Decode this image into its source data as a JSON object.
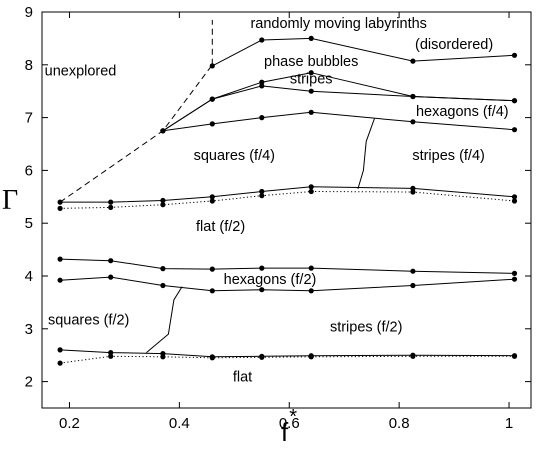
{
  "chart_data": {
    "type": "line",
    "xlabel": "f*",
    "xlabel_base": "f",
    "xlabel_sup": "*",
    "ylabel": "Γ",
    "xlim": [
      0.15,
      1.04
    ],
    "ylim": [
      1.5,
      9.0
    ],
    "grid": false,
    "legend": "none",
    "x_ticks": [
      0.2,
      0.4,
      0.6,
      0.8,
      1.0
    ],
    "x_tick_labels": [
      "0.2",
      "0.4",
      "0.6",
      "0.8",
      "1"
    ],
    "y_ticks": [
      2,
      3,
      4,
      5,
      6,
      7,
      8,
      9
    ],
    "y_tick_labels": [
      "2",
      "3",
      "4",
      "5",
      "6",
      "7",
      "8",
      "9"
    ],
    "series": [
      {
        "style": "dashed",
        "markers": false,
        "x": [
          0.183,
          0.37,
          0.46
        ],
        "y": [
          5.4,
          6.75,
          8.0
        ]
      },
      {
        "style": "dashed",
        "markers": false,
        "x": [
          0.46,
          0.46
        ],
        "y": [
          8.0,
          8.85
        ]
      },
      {
        "style": "solid",
        "markers": true,
        "x": [
          0.46,
          0.55,
          0.64,
          0.825,
          1.01
        ],
        "y": [
          7.98,
          8.47,
          8.5,
          8.07,
          8.18
        ]
      },
      {
        "style": "solid",
        "markers": true,
        "x": [
          0.37,
          0.46,
          0.55,
          0.64,
          0.825,
          1.01
        ],
        "y": [
          6.75,
          7.35,
          7.67,
          7.85,
          7.4,
          7.32
        ]
      },
      {
        "style": "solid",
        "markers": true,
        "x": [
          0.37,
          0.46,
          0.55,
          0.64,
          0.825,
          1.01
        ],
        "y": [
          6.75,
          7.35,
          7.6,
          7.5,
          7.4,
          7.32
        ]
      },
      {
        "style": "solid",
        "markers": true,
        "x": [
          0.37,
          0.46,
          0.55,
          0.64,
          0.825,
          1.01
        ],
        "y": [
          6.75,
          6.88,
          7.0,
          7.1,
          6.92,
          6.77
        ]
      },
      {
        "style": "solid",
        "markers": true,
        "x": [
          0.183,
          0.275,
          0.37,
          0.46,
          0.55,
          0.64,
          0.825,
          1.01
        ],
        "y": [
          5.4,
          5.4,
          5.43,
          5.5,
          5.6,
          5.69,
          5.66,
          5.5
        ]
      },
      {
        "style": "dotted",
        "markers": true,
        "x": [
          0.183,
          0.275,
          0.37,
          0.46,
          0.55,
          0.64,
          0.825,
          1.01
        ],
        "y": [
          5.28,
          5.3,
          5.35,
          5.42,
          5.52,
          5.6,
          5.59,
          5.42
        ]
      },
      {
        "style": "solid",
        "markers": true,
        "x": [
          0.183,
          0.275,
          0.37,
          0.46,
          0.55,
          0.64,
          0.825,
          1.01
        ],
        "y": [
          4.32,
          4.29,
          4.14,
          4.13,
          4.15,
          4.15,
          4.09,
          4.05
        ]
      },
      {
        "style": "solid",
        "markers": true,
        "x": [
          0.183,
          0.275,
          0.37,
          0.46,
          0.55,
          0.64,
          0.825,
          1.01
        ],
        "y": [
          3.92,
          3.98,
          3.82,
          3.72,
          3.74,
          3.72,
          3.82,
          3.94
        ]
      },
      {
        "style": "solid",
        "markers": true,
        "x": [
          0.183,
          0.275,
          0.37,
          0.46,
          0.55,
          0.64,
          0.825,
          1.01
        ],
        "y": [
          2.6,
          2.55,
          2.53,
          2.47,
          2.48,
          2.49,
          2.5,
          2.49
        ]
      },
      {
        "style": "dotted",
        "markers": true,
        "x": [
          0.183,
          0.275,
          0.37,
          0.46,
          0.55,
          0.64,
          0.825,
          1.01
        ],
        "y": [
          2.35,
          2.48,
          2.47,
          2.45,
          2.46,
          2.47,
          2.48,
          2.48
        ]
      },
      {
        "style": "solid",
        "markers": false,
        "x": [
          0.755,
          0.74,
          0.735,
          0.725
        ],
        "y": [
          6.98,
          6.55,
          6.0,
          5.65
        ]
      },
      {
        "style": "solid",
        "markers": false,
        "x": [
          0.405,
          0.39,
          0.38,
          0.34
        ],
        "y": [
          3.8,
          3.55,
          2.9,
          2.55
        ]
      }
    ],
    "annotations": [
      {
        "text": "unexplored",
        "x": 0.22,
        "y": 7.8
      },
      {
        "text": "randomly moving labyrinths",
        "x": 0.69,
        "y": 8.7
      },
      {
        "text": "(disordered)",
        "x": 0.9,
        "y": 8.3
      },
      {
        "text": "phase bubbles",
        "x": 0.64,
        "y": 7.98
      },
      {
        "text": "stripes",
        "x": 0.64,
        "y": 7.65
      },
      {
        "text": "hexagons (f/4)",
        "x": 0.915,
        "y": 7.03
      },
      {
        "text": "squares (f/4)",
        "x": 0.5,
        "y": 6.2
      },
      {
        "text": "stripes (f/4)",
        "x": 0.89,
        "y": 6.2
      },
      {
        "text": "flat (f/2)",
        "x": 0.475,
        "y": 4.85
      },
      {
        "text": "hexagons (f/2)",
        "x": 0.565,
        "y": 3.85
      },
      {
        "text": "squares (f/2)",
        "x": 0.235,
        "y": 3.08
      },
      {
        "text": "stripes (f/2)",
        "x": 0.74,
        "y": 2.95
      },
      {
        "text": "flat",
        "x": 0.515,
        "y": 2.0
      }
    ]
  }
}
